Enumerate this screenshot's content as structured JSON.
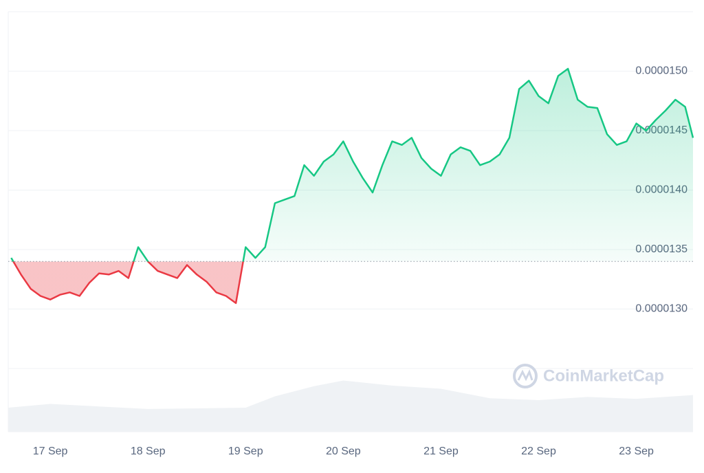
{
  "chart_data": {
    "type": "line",
    "watermark": "CoinMarketCap",
    "x": [
      16.6,
      16.7,
      16.8,
      16.9,
      17.0,
      17.1,
      17.2,
      17.3,
      17.4,
      17.5,
      17.6,
      17.7,
      17.8,
      17.9,
      18.0,
      18.1,
      18.2,
      18.3,
      18.4,
      18.5,
      18.6,
      18.7,
      18.8,
      18.9,
      19.0,
      19.1,
      19.2,
      19.3,
      19.4,
      19.5,
      19.6,
      19.7,
      19.8,
      19.9,
      20.0,
      20.1,
      20.2,
      20.3,
      20.4,
      20.5,
      20.6,
      20.7,
      20.8,
      20.9,
      21.0,
      21.1,
      21.2,
      21.3,
      21.4,
      21.5,
      21.6,
      21.7,
      21.8,
      21.9,
      22.0,
      22.1,
      22.2,
      22.3,
      22.4,
      22.5,
      22.6,
      22.7,
      22.8,
      22.9,
      23.0,
      23.1,
      23.2,
      23.3,
      23.4,
      23.5,
      23.58
    ],
    "values": [
      1.343e-05,
      1.329e-05,
      1.317e-05,
      1.311e-05,
      1.308e-05,
      1.312e-05,
      1.314e-05,
      1.311e-05,
      1.322e-05,
      1.33e-05,
      1.329e-05,
      1.332e-05,
      1.326e-05,
      1.352e-05,
      1.34e-05,
      1.332e-05,
      1.329e-05,
      1.326e-05,
      1.337e-05,
      1.329e-05,
      1.323e-05,
      1.314e-05,
      1.311e-05,
      1.305e-05,
      1.352e-05,
      1.343e-05,
      1.352e-05,
      1.389e-05,
      1.392e-05,
      1.395e-05,
      1.421e-05,
      1.412e-05,
      1.424e-05,
      1.43e-05,
      1.441e-05,
      1.424e-05,
      1.41e-05,
      1.398e-05,
      1.421e-05,
      1.441e-05,
      1.438e-05,
      1.444e-05,
      1.427e-05,
      1.418e-05,
      1.412e-05,
      1.43e-05,
      1.436e-05,
      1.433e-05,
      1.421e-05,
      1.424e-05,
      1.43e-05,
      1.444e-05,
      1.485e-05,
      1.492e-05,
      1.479e-05,
      1.473e-05,
      1.496e-05,
      1.502e-05,
      1.476e-05,
      1.47e-05,
      1.469e-05,
      1.447e-05,
      1.438e-05,
      1.441e-05,
      1.456e-05,
      1.45e-05,
      1.459e-05,
      1.467e-05,
      1.476e-05,
      1.47e-05,
      1.444e-05
    ],
    "baseline": 1.34e-05,
    "up_color": "#16c784",
    "down_color": "#ea3943",
    "xlim": [
      16.57,
      23.58
    ],
    "xticks": [
      {
        "value": 17,
        "label": "17 Sep"
      },
      {
        "value": 18,
        "label": "18 Sep"
      },
      {
        "value": 19,
        "label": "19 Sep"
      },
      {
        "value": 20,
        "label": "20 Sep"
      },
      {
        "value": 21,
        "label": "21 Sep"
      },
      {
        "value": 22,
        "label": "22 Sep"
      },
      {
        "value": 23,
        "label": "23 Sep"
      }
    ],
    "ylim": [
      1.25e-05,
      1.55e-05
    ],
    "yticks": [
      {
        "value": 1.3e-05,
        "label": "0.0000130"
      },
      {
        "value": 1.35e-05,
        "label": "0.0000135"
      },
      {
        "value": 1.4e-05,
        "label": "0.0000140"
      },
      {
        "value": 1.45e-05,
        "label": "0.0000145"
      },
      {
        "value": 1.5e-05,
        "label": "0.0000150"
      }
    ],
    "grid": true,
    "volume": {
      "x": [
        16.57,
        17.0,
        17.5,
        18.0,
        18.5,
        19.0,
        19.3,
        19.7,
        20.0,
        20.5,
        21.0,
        21.5,
        22.0,
        22.5,
        23.0,
        23.58
      ],
      "values": [
        38,
        44,
        40,
        36,
        37,
        38,
        56,
        72,
        81,
        73,
        68,
        53,
        50,
        55,
        52,
        58
      ],
      "ylim": [
        0,
        100
      ],
      "color": "#eff2f5"
    }
  }
}
